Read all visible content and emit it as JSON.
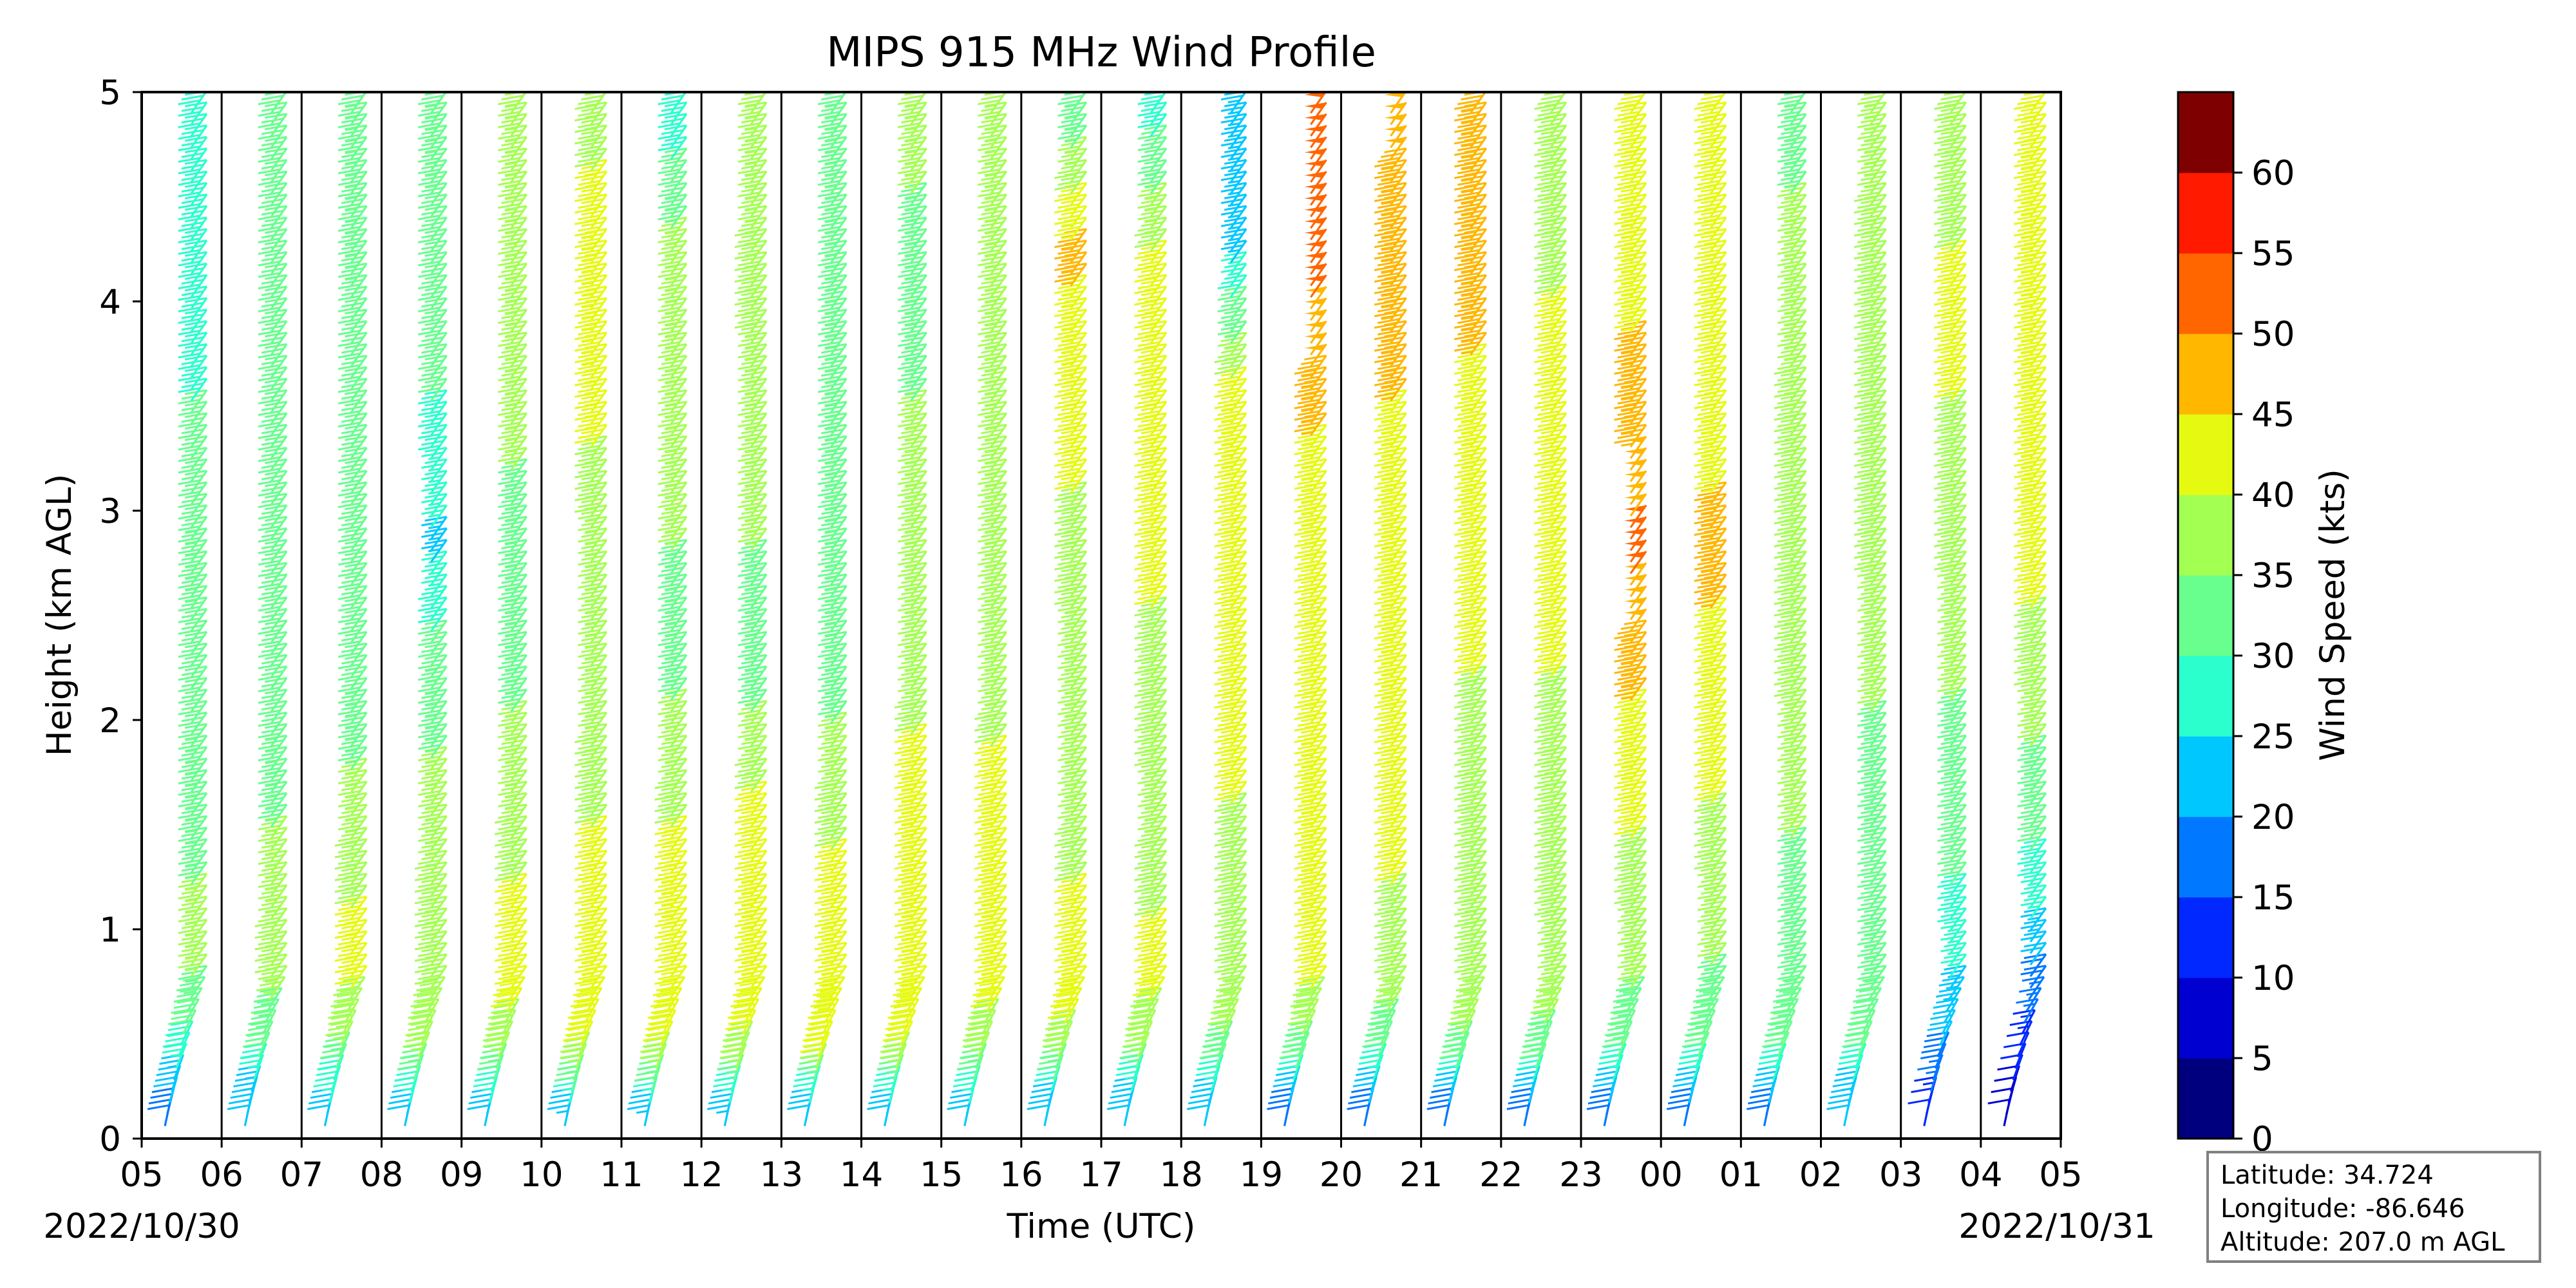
{
  "chart_data": {
    "type": "wind_barbs",
    "title": "MIPS 915 MHz Wind Profile",
    "xlabel": "Time (UTC)",
    "ylabel": "Height (km AGL)",
    "ylim": [
      0,
      5
    ],
    "yticks": [
      "0",
      "1",
      "2",
      "3",
      "4",
      "5"
    ],
    "xticks": [
      "05",
      "06",
      "07",
      "08",
      "09",
      "10",
      "11",
      "12",
      "13",
      "14",
      "15",
      "16",
      "17",
      "18",
      "19",
      "20",
      "21",
      "22",
      "23",
      "00",
      "01",
      "02",
      "03",
      "04",
      "05"
    ],
    "date_start": "2022/10/30",
    "date_end": "2022/10/31",
    "colorbar": {
      "label": "Wind Speed (kts)",
      "ticks": [
        "0",
        "5",
        "10",
        "15",
        "20",
        "25",
        "30",
        "35",
        "40",
        "45",
        "50",
        "55",
        "60"
      ],
      "colors": [
        "#00007f",
        "#0000d1",
        "#0028ff",
        "#0078ff",
        "#00c8ff",
        "#2affcd",
        "#68ff8e",
        "#a4ff53",
        "#e6fa11",
        "#ffb700",
        "#ff6600",
        "#ff1a00",
        "#7f0000"
      ]
    },
    "profiles": [
      {
        "hour": "05",
        "levels": [
          [
            0.1,
            18
          ],
          [
            0.4,
            28
          ],
          [
            0.8,
            36
          ],
          [
            1.2,
            35
          ],
          [
            1.6,
            33
          ],
          [
            2.2,
            32
          ],
          [
            2.8,
            33
          ],
          [
            3.5,
            30
          ],
          [
            4.2,
            29
          ],
          [
            4.8,
            28
          ]
        ]
      },
      {
        "hour": "06",
        "levels": [
          [
            0.1,
            20
          ],
          [
            0.4,
            31
          ],
          [
            0.8,
            38
          ],
          [
            1.2,
            37
          ],
          [
            1.6,
            34
          ],
          [
            2.2,
            31
          ],
          [
            2.8,
            30
          ],
          [
            3.5,
            30
          ],
          [
            4.2,
            31
          ],
          [
            4.8,
            30
          ]
        ]
      },
      {
        "hour": "07",
        "levels": [
          [
            0.1,
            22
          ],
          [
            0.4,
            35
          ],
          [
            0.8,
            42
          ],
          [
            1.2,
            39
          ],
          [
            1.6,
            36
          ],
          [
            2.2,
            32
          ],
          [
            2.8,
            32
          ],
          [
            3.5,
            31
          ],
          [
            4.2,
            33
          ],
          [
            4.8,
            34
          ]
        ]
      },
      {
        "hour": "08",
        "levels": [
          [
            0.1,
            22
          ],
          [
            0.4,
            36
          ],
          [
            0.8,
            40
          ],
          [
            1.2,
            38
          ],
          [
            1.6,
            36
          ],
          [
            2.2,
            33
          ],
          [
            2.8,
            24
          ],
          [
            3.5,
            30
          ],
          [
            4.2,
            32
          ],
          [
            4.8,
            33
          ]
        ]
      },
      {
        "hour": "09",
        "levels": [
          [
            0.1,
            22
          ],
          [
            0.4,
            38
          ],
          [
            0.8,
            43
          ],
          [
            1.2,
            40
          ],
          [
            1.6,
            37
          ],
          [
            2.2,
            34
          ],
          [
            2.8,
            34
          ],
          [
            3.5,
            36
          ],
          [
            4.2,
            35
          ],
          [
            4.8,
            36
          ]
        ]
      },
      {
        "hour": "10",
        "levels": [
          [
            0.1,
            23
          ],
          [
            0.4,
            40
          ],
          [
            0.8,
            43
          ],
          [
            1.2,
            42
          ],
          [
            1.6,
            39
          ],
          [
            2.2,
            36
          ],
          [
            2.8,
            36
          ],
          [
            3.5,
            42
          ],
          [
            4.2,
            44
          ],
          [
            4.8,
            38
          ]
        ]
      },
      {
        "hour": "11",
        "levels": [
          [
            0.1,
            23
          ],
          [
            0.4,
            40
          ],
          [
            0.8,
            42
          ],
          [
            1.2,
            43
          ],
          [
            1.6,
            38
          ],
          [
            2.2,
            34
          ],
          [
            2.8,
            35
          ],
          [
            3.5,
            37
          ],
          [
            4.2,
            37
          ],
          [
            4.8,
            28
          ]
        ]
      },
      {
        "hour": "12",
        "levels": [
          [
            0.1,
            23
          ],
          [
            0.4,
            39
          ],
          [
            0.8,
            43
          ],
          [
            1.2,
            43
          ],
          [
            1.6,
            40
          ],
          [
            2.2,
            33
          ],
          [
            2.8,
            35
          ],
          [
            3.5,
            37
          ],
          [
            4.2,
            38
          ],
          [
            4.8,
            36
          ]
        ]
      },
      {
        "hour": "13",
        "levels": [
          [
            0.1,
            22
          ],
          [
            0.4,
            41
          ],
          [
            0.8,
            44
          ],
          [
            1.2,
            41
          ],
          [
            1.6,
            38
          ],
          [
            2.2,
            33
          ],
          [
            2.8,
            34
          ],
          [
            3.5,
            34
          ],
          [
            4.2,
            35
          ],
          [
            4.8,
            33
          ]
        ]
      },
      {
        "hour": "14",
        "levels": [
          [
            0.1,
            22
          ],
          [
            0.4,
            40
          ],
          [
            0.8,
            44
          ],
          [
            1.2,
            44
          ],
          [
            1.6,
            44
          ],
          [
            2.2,
            36
          ],
          [
            2.8,
            35
          ],
          [
            3.5,
            35
          ],
          [
            4.2,
            34
          ],
          [
            4.8,
            36
          ]
        ]
      },
      {
        "hour": "15",
        "levels": [
          [
            0.1,
            22
          ],
          [
            0.4,
            38
          ],
          [
            0.8,
            43
          ],
          [
            1.2,
            44
          ],
          [
            1.6,
            43
          ],
          [
            2.2,
            35
          ],
          [
            2.8,
            35
          ],
          [
            3.5,
            35
          ],
          [
            4.2,
            37
          ],
          [
            4.8,
            36
          ]
        ]
      },
      {
        "hour": "16",
        "levels": [
          [
            0.1,
            21
          ],
          [
            0.4,
            38
          ],
          [
            0.8,
            44
          ],
          [
            1.2,
            40
          ],
          [
            1.6,
            36
          ],
          [
            2.2,
            36
          ],
          [
            2.8,
            39
          ],
          [
            3.5,
            42
          ],
          [
            4.2,
            46
          ],
          [
            4.8,
            33
          ]
        ]
      },
      {
        "hour": "17",
        "levels": [
          [
            0.1,
            21
          ],
          [
            0.4,
            36
          ],
          [
            0.8,
            43
          ],
          [
            1.2,
            38
          ],
          [
            1.6,
            37
          ],
          [
            2.2,
            39
          ],
          [
            2.8,
            41
          ],
          [
            3.5,
            41
          ],
          [
            4.2,
            40
          ],
          [
            4.8,
            29
          ]
        ]
      },
      {
        "hour": "18",
        "levels": [
          [
            0.1,
            20
          ],
          [
            0.4,
            34
          ],
          [
            0.8,
            38
          ],
          [
            1.2,
            39
          ],
          [
            1.6,
            40
          ],
          [
            2.2,
            42
          ],
          [
            2.8,
            42
          ],
          [
            3.5,
            43
          ],
          [
            4.2,
            24
          ],
          [
            4.8,
            23
          ]
        ]
      },
      {
        "hour": "19",
        "levels": [
          [
            0.1,
            18
          ],
          [
            0.4,
            34
          ],
          [
            0.8,
            42
          ],
          [
            1.2,
            43
          ],
          [
            1.6,
            43
          ],
          [
            2.2,
            42
          ],
          [
            2.8,
            42
          ],
          [
            3.5,
            46
          ],
          [
            4.2,
            52
          ],
          [
            4.8,
            51
          ]
        ]
      },
      {
        "hour": "20",
        "levels": [
          [
            0.1,
            18
          ],
          [
            0.4,
            33
          ],
          [
            0.8,
            38
          ],
          [
            1.2,
            40
          ],
          [
            1.6,
            41
          ],
          [
            2.2,
            43
          ],
          [
            2.8,
            43
          ],
          [
            3.5,
            45
          ],
          [
            4.2,
            46
          ],
          [
            4.8,
            48
          ]
        ]
      },
      {
        "hour": "21",
        "levels": [
          [
            0.1,
            18
          ],
          [
            0.4,
            34
          ],
          [
            0.8,
            38
          ],
          [
            1.2,
            39
          ],
          [
            1.6,
            39
          ],
          [
            2.2,
            40
          ],
          [
            2.8,
            42
          ],
          [
            3.5,
            44
          ],
          [
            4.2,
            47
          ],
          [
            4.8,
            46
          ]
        ]
      },
      {
        "hour": "22",
        "levels": [
          [
            0.1,
            18
          ],
          [
            0.4,
            34
          ],
          [
            0.8,
            37
          ],
          [
            1.2,
            38
          ],
          [
            1.6,
            39
          ],
          [
            2.2,
            40
          ],
          [
            2.8,
            41
          ],
          [
            3.5,
            42
          ],
          [
            4.2,
            39
          ],
          [
            4.8,
            38
          ]
        ]
      },
      {
        "hour": "23",
        "levels": [
          [
            0.1,
            18
          ],
          [
            0.4,
            33
          ],
          [
            0.8,
            36
          ],
          [
            1.2,
            38
          ],
          [
            1.6,
            42
          ],
          [
            2.2,
            46
          ],
          [
            2.8,
            51
          ],
          [
            3.5,
            46
          ],
          [
            4.2,
            44
          ],
          [
            4.8,
            40
          ]
        ]
      },
      {
        "hour": "00",
        "levels": [
          [
            0.1,
            18
          ],
          [
            0.4,
            32
          ],
          [
            0.8,
            35
          ],
          [
            1.2,
            37
          ],
          [
            1.6,
            40
          ],
          [
            2.2,
            43
          ],
          [
            2.8,
            47
          ],
          [
            3.5,
            42
          ],
          [
            4.2,
            42
          ],
          [
            4.8,
            40
          ]
        ]
      },
      {
        "hour": "01",
        "levels": [
          [
            0.1,
            19
          ],
          [
            0.4,
            32
          ],
          [
            0.8,
            34
          ],
          [
            1.2,
            34
          ],
          [
            1.6,
            36
          ],
          [
            2.2,
            38
          ],
          [
            2.8,
            40
          ],
          [
            3.5,
            38
          ],
          [
            4.2,
            36
          ],
          [
            4.8,
            34
          ]
        ]
      },
      {
        "hour": "02",
        "levels": [
          [
            0.1,
            20
          ],
          [
            0.4,
            31
          ],
          [
            0.8,
            33
          ],
          [
            1.2,
            32
          ],
          [
            1.6,
            33
          ],
          [
            2.2,
            36
          ],
          [
            2.8,
            38
          ],
          [
            3.5,
            39
          ],
          [
            4.2,
            38
          ],
          [
            4.8,
            37
          ]
        ]
      },
      {
        "hour": "03",
        "levels": [
          [
            0.1,
            12
          ],
          [
            0.4,
            20
          ],
          [
            0.8,
            26
          ],
          [
            1.2,
            30
          ],
          [
            1.6,
            32
          ],
          [
            2.2,
            36
          ],
          [
            2.8,
            38
          ],
          [
            3.5,
            40
          ],
          [
            4.2,
            40
          ],
          [
            4.8,
            38
          ]
        ]
      },
      {
        "hour": "04",
        "levels": [
          [
            0.1,
            8
          ],
          [
            0.4,
            12
          ],
          [
            0.8,
            20
          ],
          [
            1.2,
            28
          ],
          [
            1.6,
            33
          ],
          [
            2.2,
            38
          ],
          [
            2.8,
            42
          ],
          [
            3.5,
            44
          ],
          [
            4.2,
            45
          ],
          [
            4.8,
            42
          ]
        ]
      }
    ]
  },
  "station": {
    "latitude": "Latitude: 34.724",
    "longitude": "Longitude: -86.646",
    "altitude": "Altitude: 207.0 m AGL"
  }
}
